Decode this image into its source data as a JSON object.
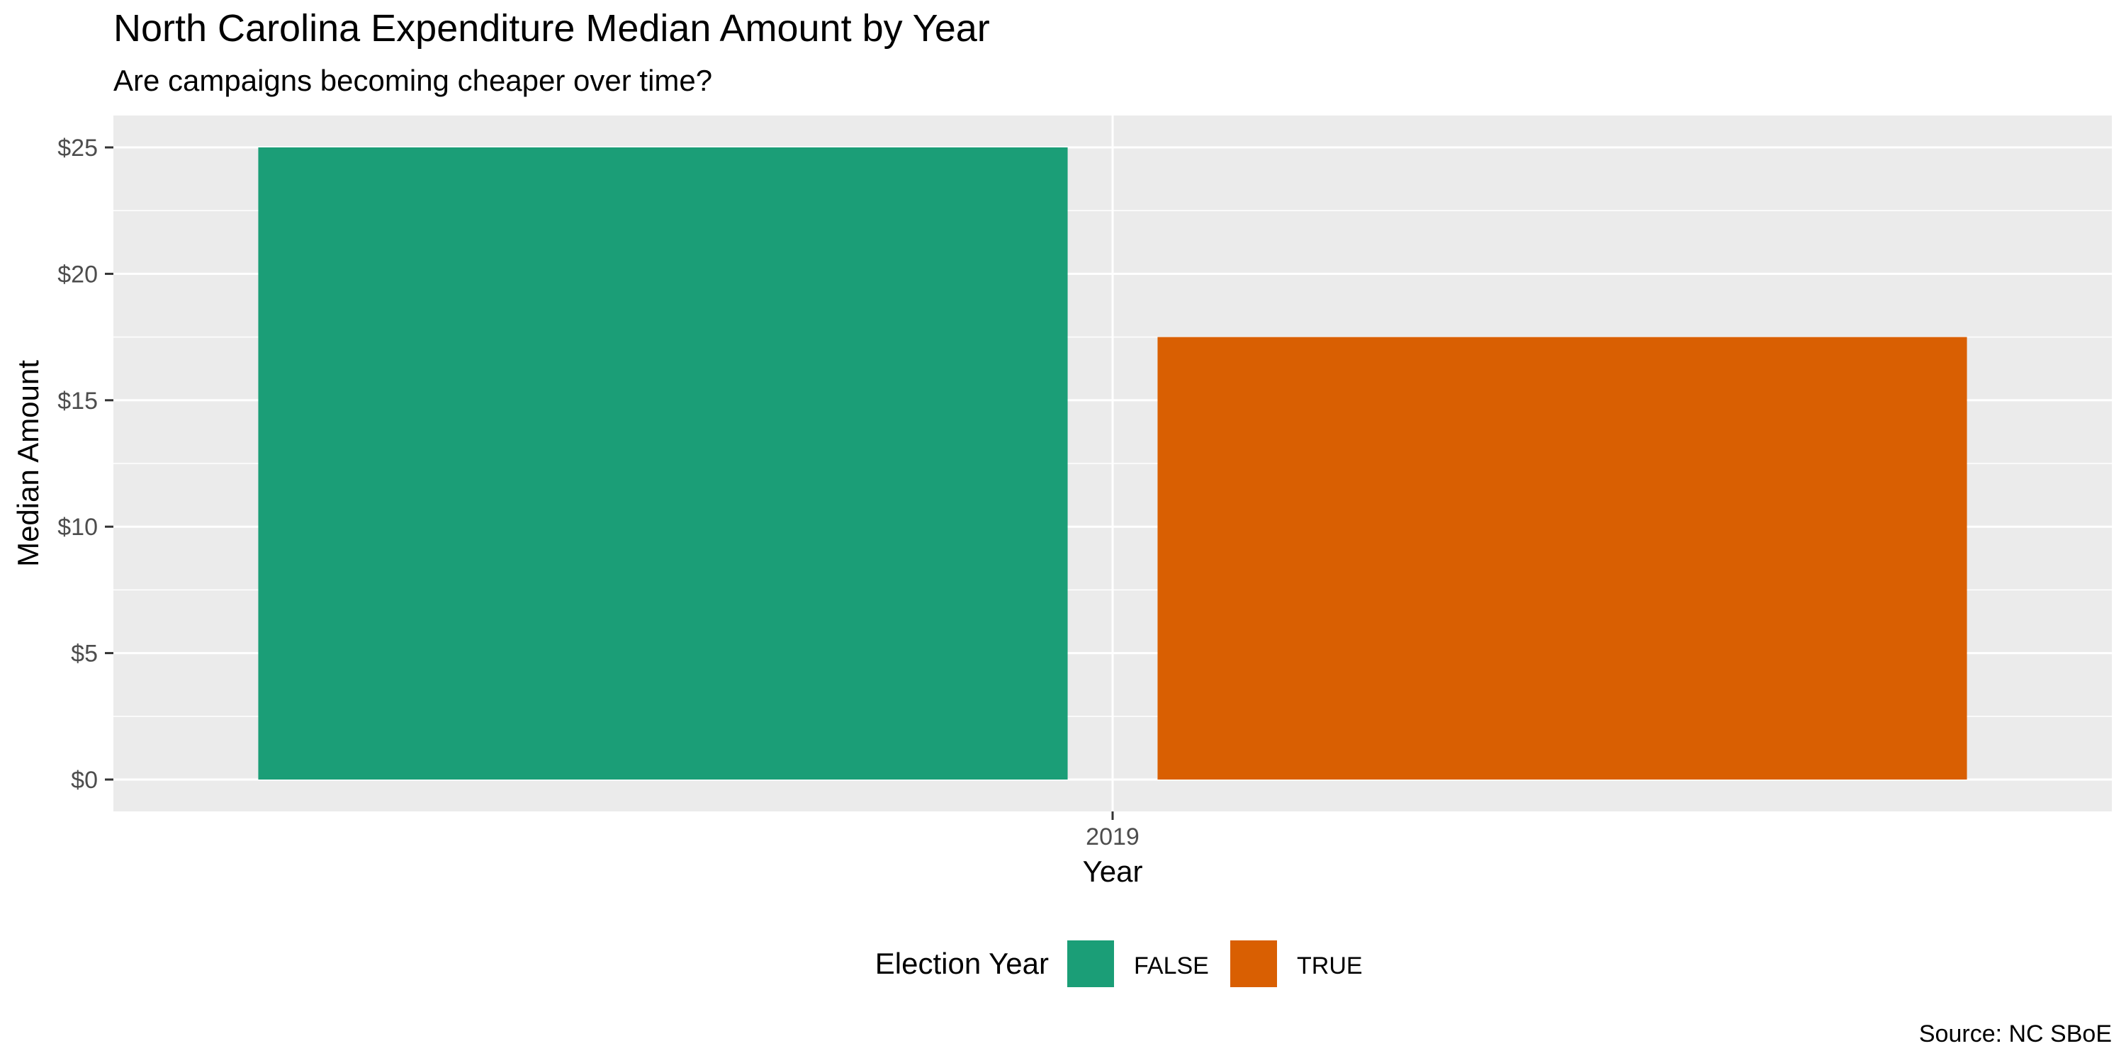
{
  "chart_data": {
    "type": "bar",
    "title": "North Carolina Expenditure Median Amount by Year",
    "subtitle": "Are campaigns becoming cheaper over time?",
    "xlabel": "Year",
    "ylabel": "Median Amount",
    "caption": "Source: NC SBoE",
    "categories": [
      "2019"
    ],
    "series": [
      {
        "name": "FALSE",
        "values": [
          25
        ],
        "color": "#1b9e77"
      },
      {
        "name": "TRUE",
        "values": [
          17.5
        ],
        "color": "#d95f02"
      }
    ],
    "ylim": [
      0,
      25
    ],
    "y_ticks": [
      0,
      5,
      10,
      15,
      20,
      25
    ],
    "y_tick_labels": [
      "$0",
      "$5",
      "$10",
      "$15",
      "$20",
      "$25"
    ],
    "grid": true,
    "legend": {
      "title": "Election Year",
      "position": "bottom",
      "items": [
        "FALSE",
        "TRUE"
      ]
    },
    "panel_background": "#ebebeb",
    "grid_color": "#ffffff"
  }
}
